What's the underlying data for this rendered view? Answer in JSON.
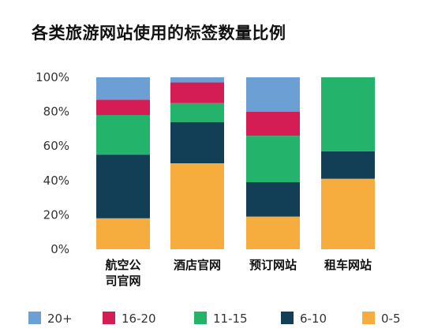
{
  "chart_data": {
    "type": "bar",
    "stacked": true,
    "title": "各类旅游网站使用的标签数量比例",
    "categories": [
      [
        "航空公",
        "司官网"
      ],
      [
        "酒店官网"
      ],
      [
        "预订网站"
      ],
      [
        "租车网站"
      ]
    ],
    "series": [
      {
        "name": "0-5",
        "color": "#F7AC3E",
        "values": [
          18,
          50,
          19,
          41
        ]
      },
      {
        "name": "6-10",
        "color": "#123F55",
        "values": [
          37,
          24,
          20,
          16
        ]
      },
      {
        "name": "11-15",
        "color": "#24B36B",
        "values": [
          23,
          11,
          27,
          43
        ]
      },
      {
        "name": "16-20",
        "color": "#D41C55",
        "values": [
          9,
          12,
          14,
          0
        ]
      },
      {
        "name": "20+",
        "color": "#6C9FD4",
        "values": [
          13,
          3,
          20,
          0
        ]
      }
    ],
    "legend_order": [
      "20+",
      "16-20",
      "11-15",
      "6-10",
      "0-5"
    ],
    "yticks": [
      "0%",
      "20%",
      "40%",
      "60%",
      "80%",
      "100%"
    ],
    "ylim": [
      0,
      100
    ],
    "grid": false,
    "legend_position": "bottom"
  }
}
